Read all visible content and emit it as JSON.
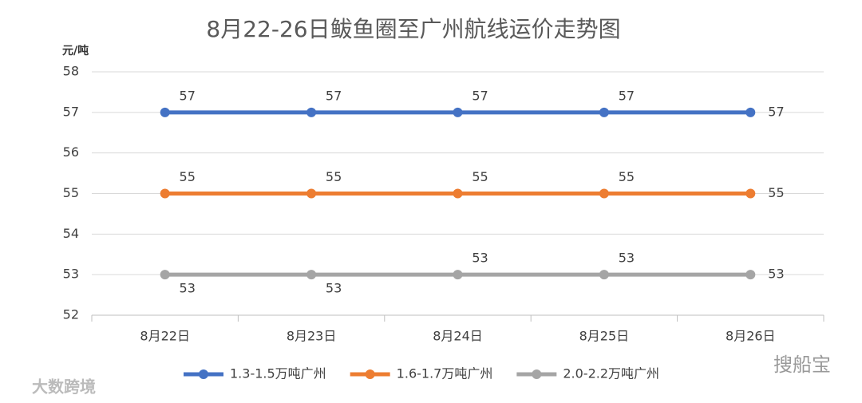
{
  "chart_data": {
    "type": "line",
    "title": "8月22-26日鲅鱼圈至广州航线运价走势图",
    "y_axis_label": "元/吨",
    "categories": [
      "8月22日",
      "8月23日",
      "8月24日",
      "8月25日",
      "8月26日"
    ],
    "series": [
      {
        "name": "1.3-1.5万吨广州",
        "color": "#4472c4",
        "values": [
          57,
          57,
          57,
          57,
          57
        ]
      },
      {
        "name": "1.6-1.7万吨广州",
        "color": "#ed7d31",
        "values": [
          55,
          55,
          55,
          55,
          55
        ]
      },
      {
        "name": "2.0-2.2万吨广州",
        "color": "#a5a5a5",
        "values": [
          53,
          53,
          53,
          53,
          53
        ]
      }
    ],
    "ylim": [
      52,
      58
    ],
    "yticks": [
      52,
      53,
      54,
      55,
      56,
      57,
      58
    ],
    "grid": true,
    "legend": "bottom",
    "watermarks": [
      "大数跨境",
      "搜船宝"
    ]
  }
}
